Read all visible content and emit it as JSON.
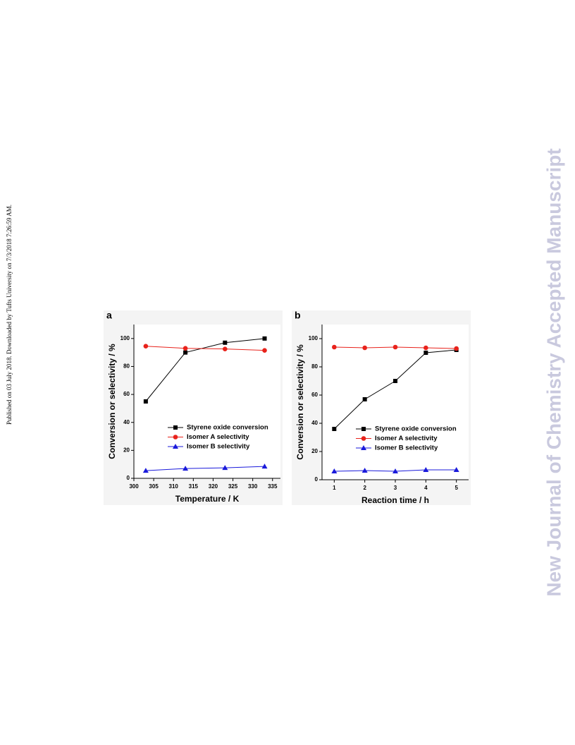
{
  "side_note": "Published on 03 July 2018. Downloaded by Tufts University on 7/3/2018 7:26:59 AM.",
  "watermark": "New Journal of Chemistry Accepted Manuscript",
  "chart_data": [
    {
      "type": "line",
      "panel_label": "a",
      "x_label": "Temperature / K",
      "y_label": "Conversion or selectivity / %",
      "x": [
        303,
        313,
        323,
        333
      ],
      "xlim": [
        300,
        337
      ],
      "xticks": [
        300,
        305,
        310,
        315,
        320,
        325,
        330,
        335
      ],
      "ylim": [
        0,
        110
      ],
      "yticks": [
        0,
        20,
        40,
        60,
        80,
        100
      ],
      "legend": "lower right",
      "series": [
        {
          "name": "Styrene oxide conversion",
          "color": "#000000",
          "marker": "square",
          "values": [
            55,
            90,
            97,
            100
          ]
        },
        {
          "name": "Isomer A selectivity",
          "color": "#e8221b",
          "marker": "circle",
          "values": [
            94.5,
            93,
            92.5,
            91.5
          ]
        },
        {
          "name": "Isomer B selectivity",
          "color": "#1a1adb",
          "marker": "triangle",
          "values": [
            5.5,
            7,
            7.5,
            8.5
          ]
        }
      ]
    },
    {
      "type": "line",
      "panel_label": "b",
      "x_label": "Reaction time / h",
      "y_label": "Conversion or selectivity / %",
      "x": [
        1,
        2,
        3,
        4,
        5
      ],
      "xlim": [
        0.6,
        5.4
      ],
      "xticks": [
        1,
        2,
        3,
        4,
        5
      ],
      "ylim": [
        0,
        110
      ],
      "yticks": [
        0,
        20,
        40,
        60,
        80,
        100
      ],
      "legend": "lower right",
      "series": [
        {
          "name": "Styrene oxide conversion",
          "color": "#000000",
          "marker": "square",
          "values": [
            36,
            57,
            70,
            90,
            92
          ]
        },
        {
          "name": "Isomer A selectivity",
          "color": "#e8221b",
          "marker": "circle",
          "values": [
            94,
            93.5,
            94,
            93.5,
            93
          ]
        },
        {
          "name": "Isomer B selectivity",
          "color": "#1a1adb",
          "marker": "triangle",
          "values": [
            6,
            6.5,
            6,
            7,
            7
          ]
        }
      ]
    }
  ]
}
